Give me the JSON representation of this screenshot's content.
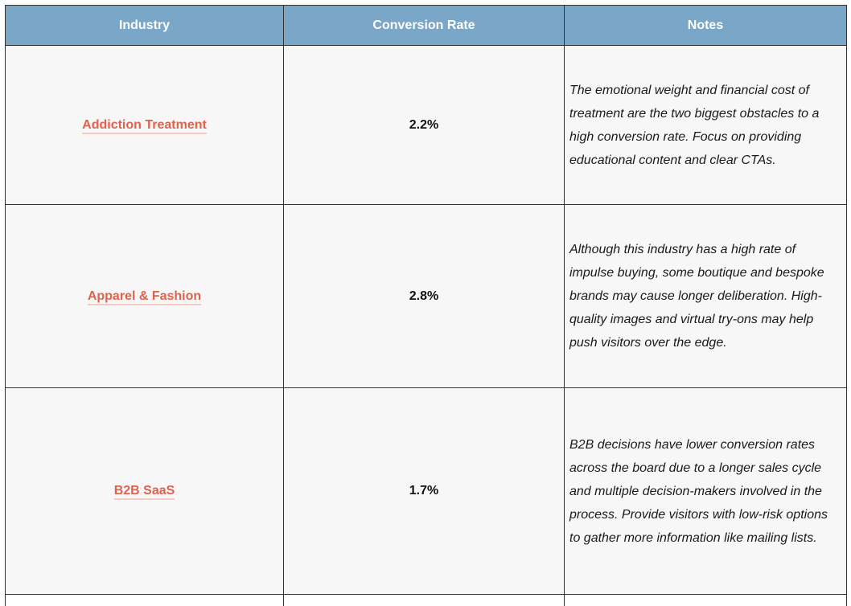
{
  "table": {
    "headers": {
      "industry": "Industry",
      "rate": "Conversion Rate",
      "notes": "Notes"
    },
    "rows": [
      {
        "industry": "Addiction Treatment",
        "rate": "2.2%",
        "notes": "The emotional weight and financial cost of treatment are the two biggest obstacles to a high conversion rate. Focus on providing educational content and clear CTAs."
      },
      {
        "industry": "Apparel & Fashion",
        "rate": "2.8%",
        "notes": "Although this industry has a high rate of impulse buying, some boutique and bespoke brands may cause longer deliberation. High-quality images and virtual try-ons may help push visitors over the edge."
      },
      {
        "industry": "B2B SaaS",
        "rate": "1.7%",
        "notes": "B2B decisions have lower conversion rates across the board due to a longer sales cycle and multiple decision-makers involved in the process. Provide visitors with low-risk options to gather more information like mailing lists."
      }
    ]
  },
  "colors": {
    "header_bg": "#7aa6c8",
    "link": "#e2614d",
    "row_bg": "#f7f7f7"
  }
}
